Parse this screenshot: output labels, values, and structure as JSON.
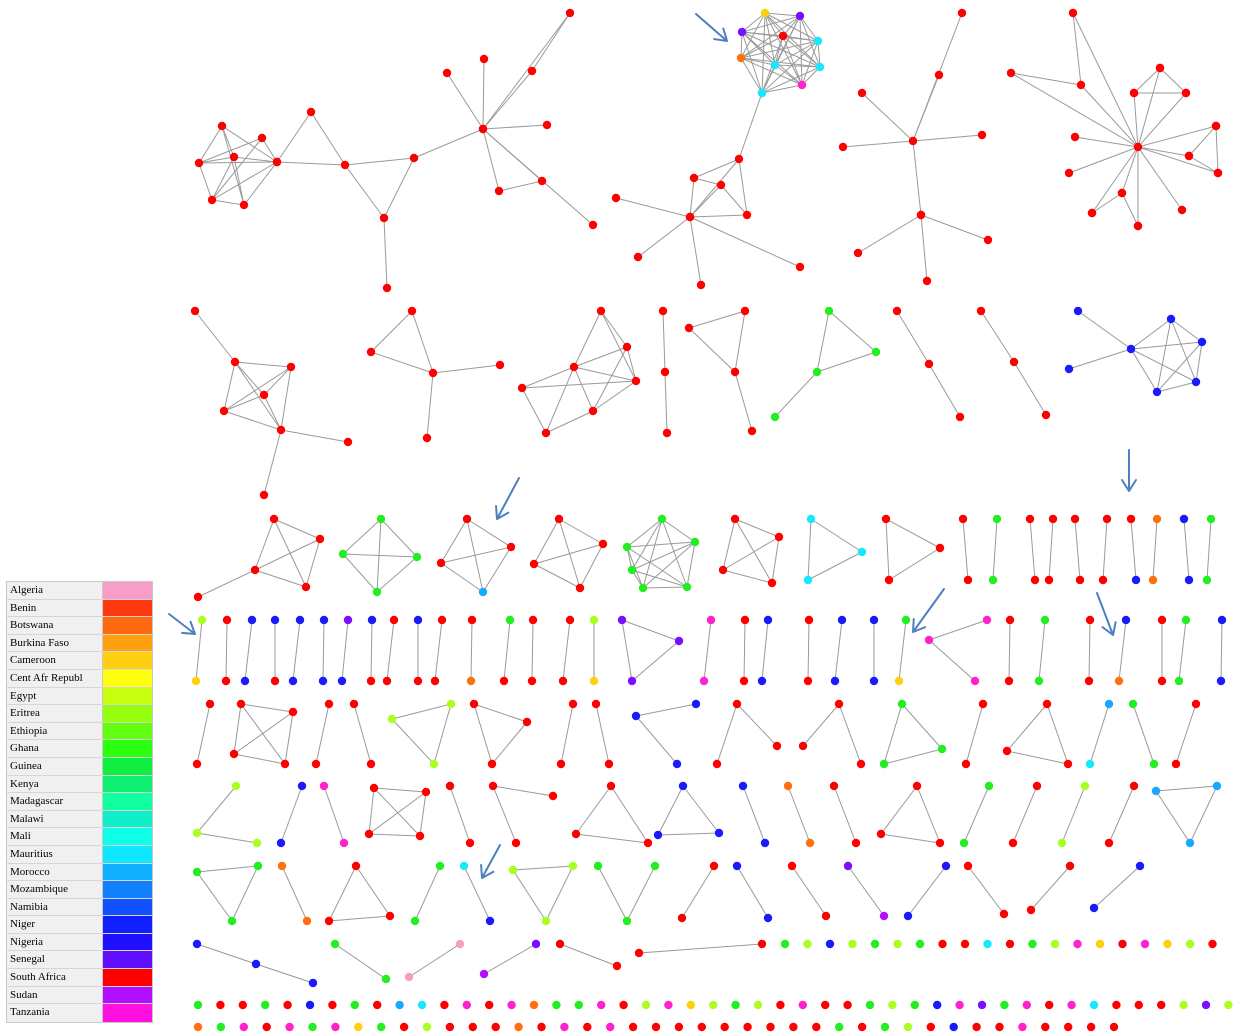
{
  "legend": {
    "items": [
      {
        "label": "Algeria",
        "color": "#f79dc8"
      },
      {
        "label": "Benin",
        "color": "#ff3a10"
      },
      {
        "label": "Botswana",
        "color": "#ff6a10"
      },
      {
        "label": "Burkina Faso",
        "color": "#ffa010"
      },
      {
        "label": "Cameroon",
        "color": "#ffd010"
      },
      {
        "label": "Cent Afr Republ",
        "color": "#ffff10"
      },
      {
        "label": "Egypt",
        "color": "#c8ff10"
      },
      {
        "label": "Eritrea",
        "color": "#96ff10"
      },
      {
        "label": "Ethiopia",
        "color": "#64ff10"
      },
      {
        "label": "Ghana",
        "color": "#2aff10"
      },
      {
        "label": "Guinea",
        "color": "#10f040"
      },
      {
        "label": "Kenya",
        "color": "#10f070"
      },
      {
        "label": "Madagascar",
        "color": "#10ffa0"
      },
      {
        "label": "Malawi",
        "color": "#10f0c8"
      },
      {
        "label": "Mali",
        "color": "#10ffe8"
      },
      {
        "label": "Mauritius",
        "color": "#10e8ff"
      },
      {
        "label": "Morocco",
        "color": "#10b0ff"
      },
      {
        "label": "Mozambique",
        "color": "#1080ff"
      },
      {
        "label": "Namibia",
        "color": "#1050ff"
      },
      {
        "label": "Niger",
        "color": "#1020ff"
      },
      {
        "label": "Nigeria",
        "color": "#2010ff"
      },
      {
        "label": "Senegal",
        "color": "#6010ff"
      },
      {
        "label": "South Africa",
        "color": "#ff0000"
      },
      {
        "label": "Sudan",
        "color": "#b010ff"
      },
      {
        "label": "Tanzania",
        "color": "#ff10e0"
      }
    ]
  },
  "colors": {
    "red": "#ff0000",
    "blue": "#1a1aff",
    "green": "#22ee22",
    "lime": "#aaff22",
    "magenta": "#ff22cc",
    "cyan": "#18e8ff",
    "orange": "#ff7010",
    "purple": "#7a10ff",
    "violet": "#b010ff",
    "pink": "#f79dc8",
    "yellow": "#ffd010",
    "skyblue": "#18a8ff",
    "edge": "#9a9a9a",
    "arrow": "#4f7fbf"
  }
}
